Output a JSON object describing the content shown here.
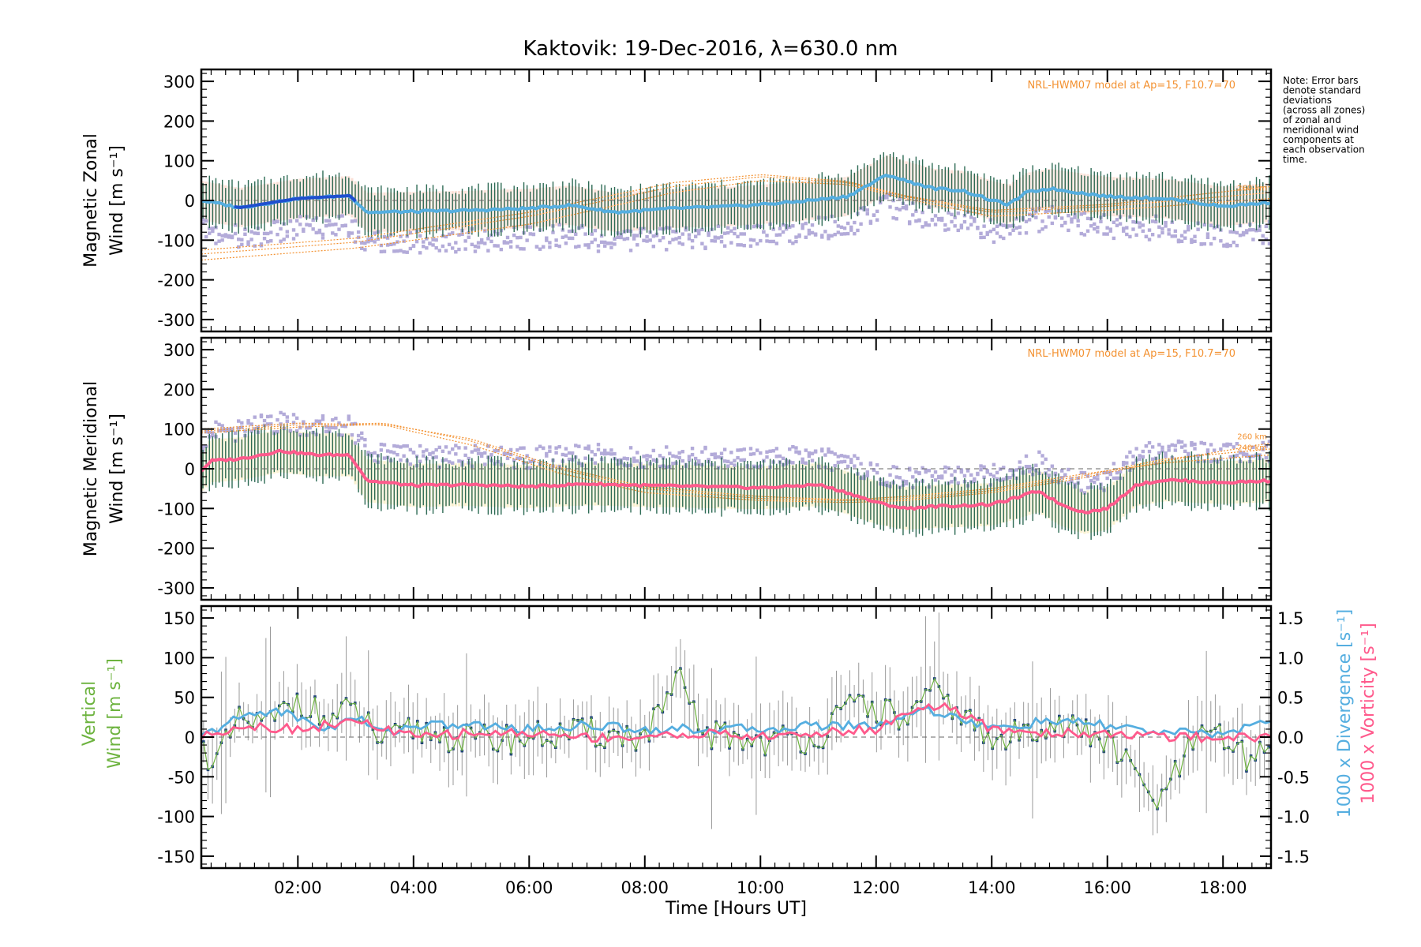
{
  "title": "Kaktovik: 19-Dec-2016, λ=630.0 nm",
  "note": [
    "Note: Error bars",
    "denote standard",
    "deviations",
    "(across all zones)",
    "of zonal and",
    "meridional wind",
    "components at",
    "each observation",
    "time."
  ],
  "colors": {
    "axis": "#000000",
    "model": "#f39232",
    "lavender": "#b3abd9",
    "peach": "#f7c7b4",
    "pale_yellow": "#f5e6a8",
    "errbar": "#2e6b55",
    "zonal_dark": "#1f4fcf",
    "zonal": "#55aee0",
    "meridional": "#ff5a8c",
    "vertical": "#6db33f",
    "vertical_pts": "#1a3d7a",
    "vert_err": "#9a9a9a",
    "divergence": "#55aee0",
    "vorticity": "#ff5a8c"
  },
  "chart_data": [
    {
      "type": "line",
      "panel": "zonal",
      "ylabel": "Magnetic Zonal Wind [m s⁻¹]",
      "ylim": [
        -330,
        330
      ],
      "yticks": [
        300,
        200,
        100,
        0,
        -100,
        -200,
        -300
      ],
      "model_label": "NRL-HWM07 model at Ap=15, F10.7=70",
      "model_alt_labels": [
        "260 km"
      ],
      "xlim": [
        0.33,
        18.83
      ],
      "series": [
        {
          "x": [
            0.33,
            1.0,
            2.0,
            2.9,
            3.2,
            4.0,
            5.0,
            6.0,
            6.7,
            7.5,
            8.5,
            9.5,
            10.5,
            11.5,
            12.2,
            12.5,
            13.0,
            13.5,
            14.0,
            14.3,
            14.6,
            15.0,
            16.0,
            17.0,
            18.0,
            18.83
          ],
          "y": [
            0,
            -18,
            5,
            12,
            -30,
            -28,
            -25,
            -20,
            -12,
            -30,
            -20,
            -15,
            -5,
            10,
            65,
            50,
            30,
            25,
            0,
            -10,
            20,
            30,
            10,
            5,
            -15,
            -5
          ]
        }
      ],
      "models": [
        {
          "x": [
            0.33,
            3,
            6,
            8.5,
            10,
            11.5,
            12.5,
            14,
            16,
            18.83
          ],
          "y": [
            -150,
            -120,
            -60,
            20,
            50,
            40,
            5,
            -40,
            -25,
            5
          ]
        },
        {
          "x": [
            0.33,
            3,
            6,
            8.5,
            10,
            11.5,
            12.5,
            14,
            16,
            18.83
          ],
          "y": [
            -135,
            -105,
            -40,
            35,
            60,
            45,
            10,
            -30,
            -15,
            20
          ]
        },
        {
          "x": [
            0.33,
            3,
            6,
            8.5,
            10,
            11.5,
            12.5,
            14,
            16,
            18.83
          ],
          "y": [
            -125,
            -95,
            -30,
            45,
            65,
            48,
            12,
            -25,
            -10,
            35
          ]
        }
      ]
    },
    {
      "type": "line",
      "panel": "meridional",
      "ylabel": "Magnetic Meridional Wind [m s⁻¹]",
      "ylim": [
        -330,
        330
      ],
      "yticks": [
        300,
        200,
        100,
        0,
        -100,
        -200,
        -300
      ],
      "model_label": "NRL-HWM07 model at Ap=15, F10.7=70",
      "model_alt_labels": [
        "260 km",
        "240 km"
      ],
      "xlim": [
        0.33,
        18.83
      ],
      "series": [
        {
          "x": [
            0.33,
            0.5,
            1.0,
            1.7,
            2.3,
            2.9,
            3.2,
            4.0,
            5.0,
            6.0,
            7.0,
            8.0,
            9.0,
            10.0,
            11.0,
            11.5,
            12.0,
            12.5,
            13.0,
            14.0,
            14.5,
            14.8,
            15.2,
            15.6,
            16.0,
            16.5,
            17.0,
            18.0,
            18.83
          ],
          "y": [
            -5,
            20,
            25,
            45,
            35,
            35,
            -30,
            -42,
            -40,
            -45,
            -38,
            -42,
            -45,
            -48,
            -40,
            -60,
            -85,
            -100,
            -95,
            -90,
            -70,
            -55,
            -90,
            -110,
            -100,
            -40,
            -28,
            -35,
            -30
          ]
        }
      ],
      "models": [
        {
          "x": [
            0.33,
            2,
            3.5,
            5,
            6.5,
            8,
            10,
            11.5,
            12.5,
            14,
            15.5,
            17,
            18.83
          ],
          "y": [
            100,
            115,
            110,
            60,
            -10,
            -60,
            -80,
            -85,
            -80,
            -60,
            -25,
            20,
            65
          ]
        },
        {
          "x": [
            0.33,
            2,
            3.5,
            5,
            6.5,
            8,
            10,
            11.5,
            12.5,
            14,
            15.5,
            17,
            18.83
          ],
          "y": [
            95,
            110,
            115,
            70,
            0,
            -50,
            -75,
            -80,
            -75,
            -55,
            -20,
            25,
            50
          ]
        },
        {
          "x": [
            0.33,
            2,
            3.5,
            5,
            6.5,
            8,
            10,
            11.5,
            12.5,
            14,
            15.5,
            17,
            18.83
          ],
          "y": [
            90,
            105,
            112,
            75,
            5,
            -45,
            -70,
            -78,
            -70,
            -50,
            -15,
            15,
            35
          ]
        }
      ]
    },
    {
      "type": "line",
      "panel": "vertical",
      "ylabel_left": "Vertical Wind [m s⁻¹]",
      "ylabel_right_1": "1000 x Divergence [s⁻¹]",
      "ylabel_right_2": "1000 x Vorticity [s⁻¹]",
      "ylim": [
        -165,
        165
      ],
      "yticks": [
        150,
        100,
        50,
        0,
        -50,
        -100,
        -150
      ],
      "y2lim": [
        -1.65,
        1.65
      ],
      "y2ticks": [
        1.5,
        1.0,
        0.5,
        0.0,
        -0.5,
        -1.0,
        -1.5
      ],
      "xlim": [
        0.33,
        18.83
      ],
      "xticks": [
        "02:00",
        "04:00",
        "06:00",
        "08:00",
        "10:00",
        "12:00",
        "14:00",
        "16:00",
        "18:00"
      ],
      "xlabel": "Time [Hours UT]",
      "series": [
        {
          "name": "Vertical",
          "x": [
            0.33,
            0.6,
            1.0,
            1.5,
            2.0,
            2.5,
            3.0,
            3.5,
            4.0,
            5.0,
            6.0,
            7.0,
            8.0,
            8.6,
            9.0,
            10.0,
            11.0,
            11.7,
            12.5,
            13.0,
            13.5,
            14.0,
            15.0,
            16.0,
            16.9,
            17.5,
            18.0,
            18.5,
            18.83
          ],
          "y": [
            -15,
            -30,
            20,
            15,
            50,
            20,
            35,
            -10,
            10,
            -5,
            0,
            5,
            0,
            70,
            5,
            -5,
            0,
            45,
            20,
            55,
            30,
            -10,
            20,
            -5,
            -85,
            -5,
            0,
            -35,
            10
          ]
        },
        {
          "name": "Divergence",
          "x": [
            0.33,
            1.0,
            1.6,
            2.5,
            3.0,
            3.5,
            4.0,
            5.0,
            6.0,
            7.0,
            8.0,
            9.0,
            10.0,
            11.0,
            12.0,
            12.8,
            13.2,
            14.0,
            15.0,
            16.0,
            17.0,
            18.0,
            18.83
          ],
          "y": [
            0.0,
            0.25,
            0.35,
            0.1,
            0.25,
            0.05,
            0.15,
            0.15,
            0.1,
            0.15,
            0.1,
            0.1,
            0.1,
            0.15,
            0.15,
            0.35,
            0.3,
            0.1,
            0.2,
            0.15,
            0.05,
            0.05,
            0.2
          ]
        },
        {
          "name": "Vorticity",
          "x": [
            0.33,
            1.0,
            2.0,
            3.0,
            3.5,
            4.0,
            5.0,
            6.0,
            7.0,
            8.0,
            9.0,
            10.0,
            11.0,
            12.0,
            12.8,
            13.3,
            14.0,
            15.0,
            16.0,
            17.0,
            18.0,
            18.83
          ],
          "y": [
            0.0,
            0.15,
            0.1,
            0.2,
            0.1,
            0.0,
            0.05,
            0.05,
            0.0,
            0.0,
            0.05,
            0.0,
            0.05,
            0.1,
            0.4,
            0.35,
            0.1,
            0.05,
            0.05,
            0.0,
            0.0,
            0.0
          ]
        }
      ]
    }
  ]
}
